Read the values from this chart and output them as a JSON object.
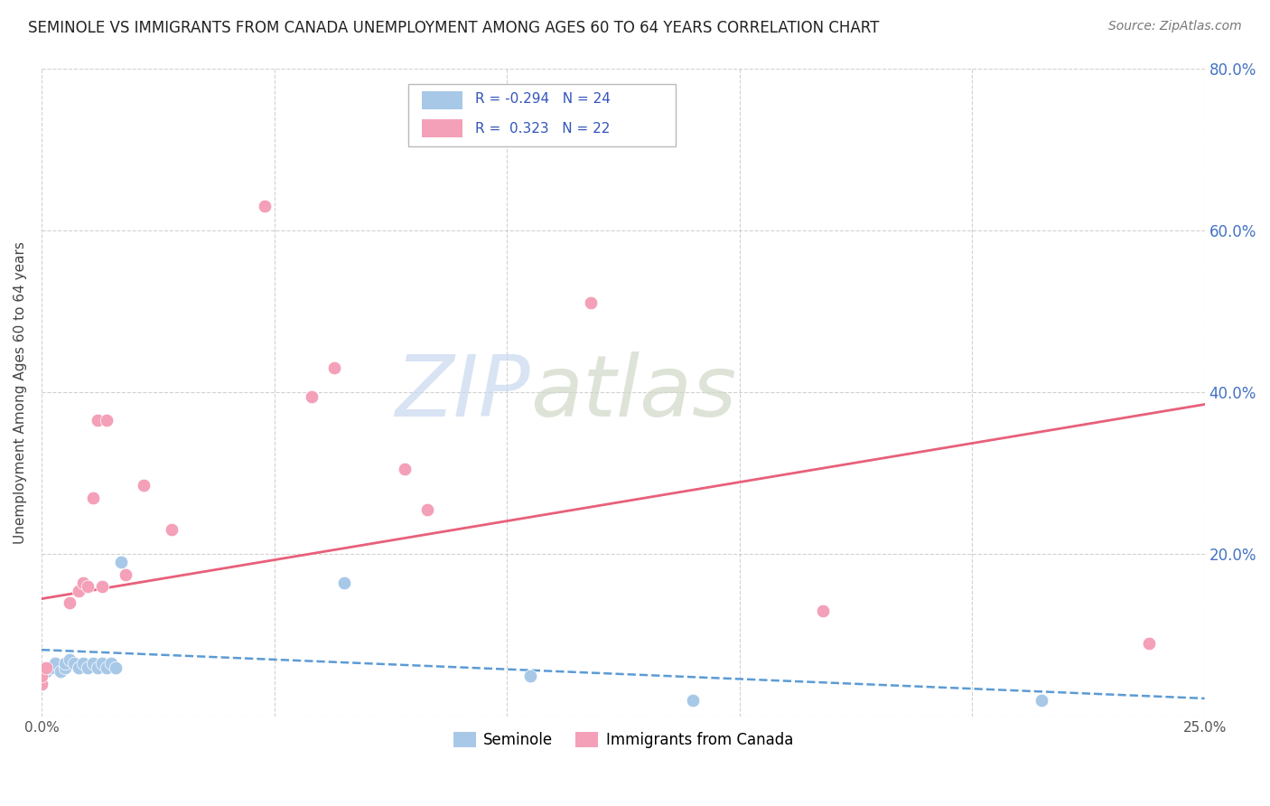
{
  "title": "SEMINOLE VS IMMIGRANTS FROM CANADA UNEMPLOYMENT AMONG AGES 60 TO 64 YEARS CORRELATION CHART",
  "source": "Source: ZipAtlas.com",
  "ylabel": "Unemployment Among Ages 60 to 64 years",
  "x_min": 0.0,
  "x_max": 0.25,
  "y_min": 0.0,
  "y_max": 0.8,
  "x_ticks": [
    0.0,
    0.05,
    0.1,
    0.15,
    0.2,
    0.25
  ],
  "x_tick_labels": [
    "0.0%",
    "",
    "",
    "",
    "",
    "25.0%"
  ],
  "y_ticks": [
    0.0,
    0.2,
    0.4,
    0.6,
    0.8
  ],
  "y_tick_labels": [
    "",
    "20.0%",
    "40.0%",
    "60.0%",
    "80.0%"
  ],
  "seminole_R": -0.294,
  "seminole_N": 24,
  "canada_R": 0.323,
  "canada_N": 22,
  "seminole_color": "#a8c8e8",
  "canada_color": "#f4a0b8",
  "seminole_line_color": "#5b9bd5",
  "canada_line_color": "#e8607a",
  "watermark_zip": "ZIP",
  "watermark_atlas": "atlas",
  "seminole_line_x": [
    0.0,
    0.25
  ],
  "seminole_line_y": [
    0.082,
    0.022
  ],
  "canada_line_x": [
    0.0,
    0.25
  ],
  "canada_line_y": [
    0.145,
    0.385
  ],
  "seminole_points_x": [
    0.0,
    0.0,
    0.001,
    0.002,
    0.003,
    0.004,
    0.005,
    0.005,
    0.006,
    0.007,
    0.008,
    0.009,
    0.01,
    0.011,
    0.012,
    0.013,
    0.014,
    0.015,
    0.016,
    0.017,
    0.065,
    0.105,
    0.14,
    0.215
  ],
  "seminole_points_y": [
    0.04,
    0.06,
    0.055,
    0.06,
    0.065,
    0.055,
    0.06,
    0.065,
    0.07,
    0.065,
    0.06,
    0.065,
    0.06,
    0.065,
    0.06,
    0.065,
    0.06,
    0.065,
    0.06,
    0.19,
    0.165,
    0.05,
    0.02,
    0.02
  ],
  "canada_points_x": [
    0.0,
    0.0,
    0.001,
    0.006,
    0.008,
    0.009,
    0.01,
    0.011,
    0.012,
    0.013,
    0.014,
    0.018,
    0.022,
    0.028,
    0.048,
    0.058,
    0.063,
    0.078,
    0.083,
    0.118,
    0.168,
    0.238
  ],
  "canada_points_y": [
    0.04,
    0.05,
    0.06,
    0.14,
    0.155,
    0.165,
    0.16,
    0.27,
    0.365,
    0.16,
    0.365,
    0.175,
    0.285,
    0.23,
    0.63,
    0.395,
    0.43,
    0.305,
    0.255,
    0.51,
    0.13,
    0.09
  ]
}
